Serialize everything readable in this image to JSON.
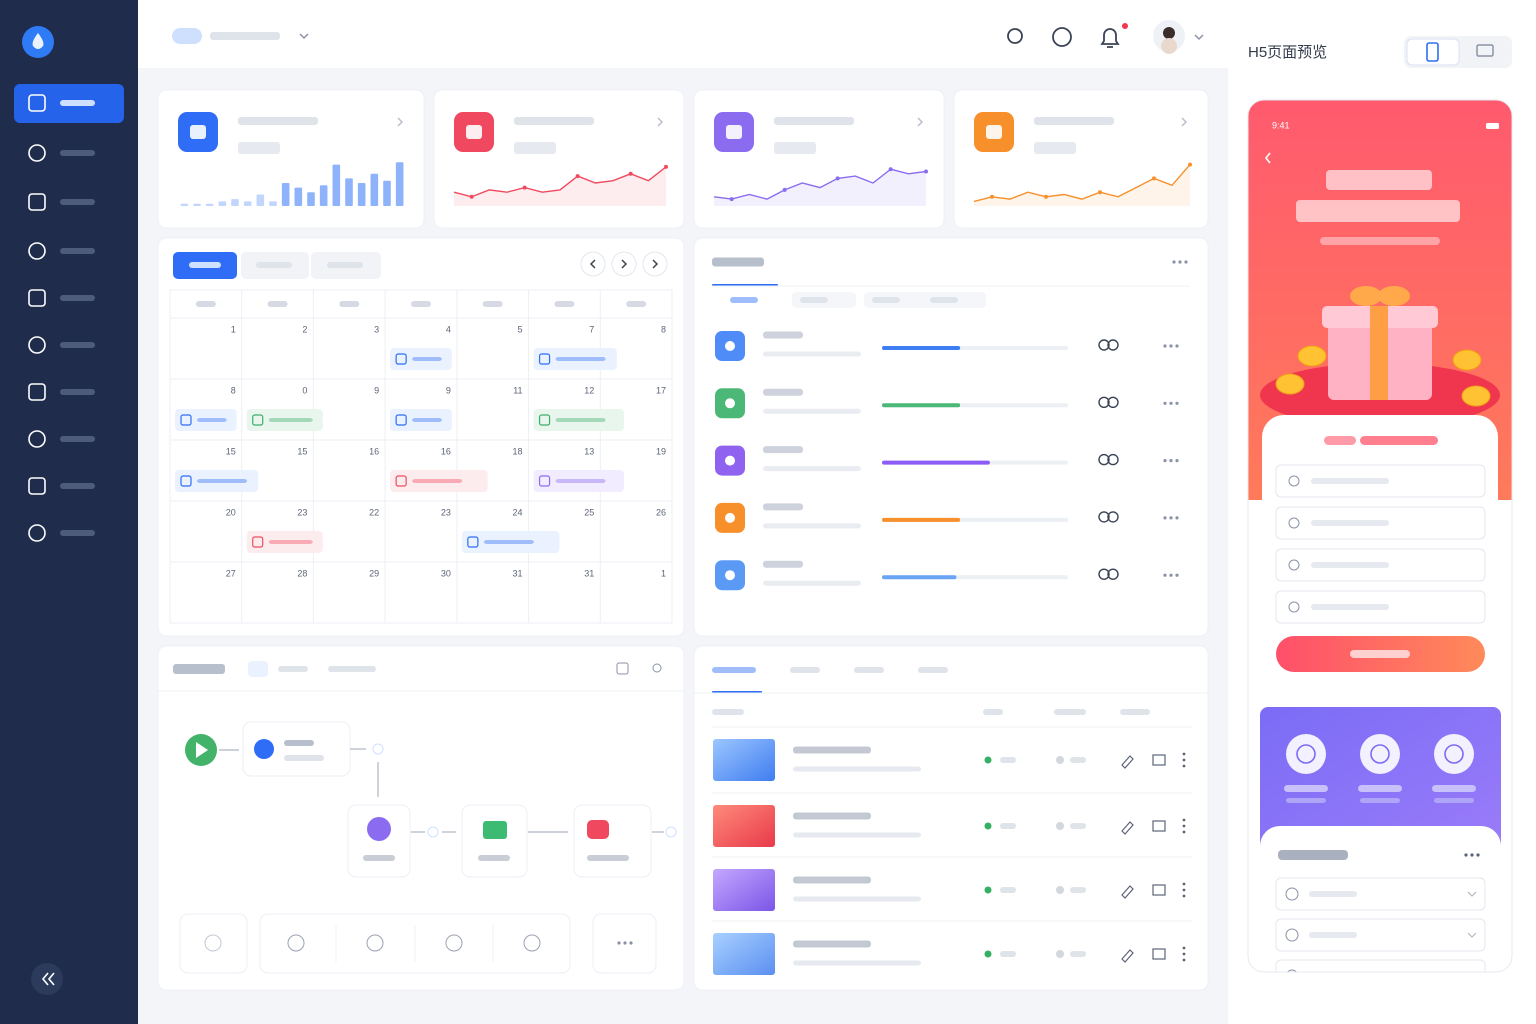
{
  "preview_title": "H5页面预览",
  "phone_time": "9:41",
  "stat_cards": [
    {
      "type": "bar",
      "color": "#2f6df6",
      "values": [
        0.5,
        0.5,
        0.5,
        1,
        1.5,
        1,
        2.5,
        1,
        5,
        4,
        3,
        4.5,
        9,
        6,
        5,
        7,
        5.5,
        9.5
      ]
    },
    {
      "type": "line",
      "color": "#ef4b5f",
      "values": [
        3,
        2,
        3.5,
        3,
        4,
        3,
        3.5,
        6.5,
        5,
        5.5,
        7,
        5.5,
        8.5
      ]
    },
    {
      "type": "line",
      "color": "#8b6cf0",
      "values": [
        2,
        1.5,
        2.5,
        1.5,
        3.5,
        5,
        4,
        6,
        6.5,
        5,
        8,
        7,
        7.5
      ]
    },
    {
      "type": "line",
      "color": "#f7902b",
      "values": [
        1,
        2,
        1.5,
        3,
        2,
        2.5,
        1.5,
        3,
        2,
        4,
        6,
        4.5,
        9
      ]
    }
  ],
  "calendar": {
    "weeks": [
      [
        1,
        2,
        3,
        4,
        5,
        7,
        8
      ],
      [
        8,
        0,
        9,
        9,
        11,
        12,
        17
      ],
      [
        15,
        15,
        16,
        16,
        18,
        13,
        19
      ],
      [
        20,
        23,
        22,
        23,
        24,
        25,
        26
      ],
      [
        27,
        28,
        29,
        30,
        31,
        31,
        1
      ]
    ]
  },
  "tasks": {
    "progress": [
      42,
      42,
      58,
      42,
      40
    ]
  }
}
